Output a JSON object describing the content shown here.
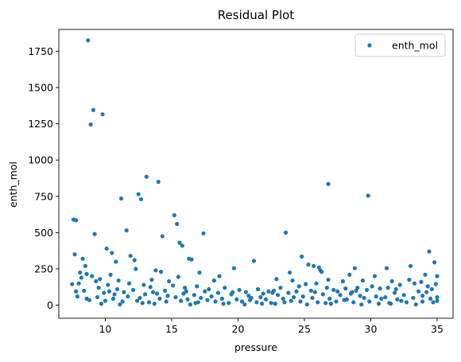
{
  "chart_data": {
    "type": "scatter",
    "title": "Residual Plot",
    "xlabel": "pressure",
    "ylabel": "enth_mol",
    "xlim": [
      6.5,
      36.2
    ],
    "ylim": [
      -90,
      1900
    ],
    "xticks": [
      10,
      15,
      20,
      25,
      30,
      35
    ],
    "yticks": [
      0,
      250,
      500,
      750,
      1000,
      1250,
      1500,
      1750
    ],
    "grid": false,
    "legend": {
      "position": "top-right",
      "entries": [
        "enth_mol"
      ]
    },
    "series": [
      {
        "name": "enth_mol",
        "color": "#1f77b4",
        "points": [
          [
            8.7,
            1825
          ],
          [
            9.1,
            1345
          ],
          [
            8.9,
            1245
          ],
          [
            9.8,
            1315
          ],
          [
            13.1,
            885
          ],
          [
            14.0,
            850
          ],
          [
            26.8,
            835
          ],
          [
            12.5,
            765
          ],
          [
            12.7,
            730
          ],
          [
            11.2,
            735
          ],
          [
            29.8,
            755
          ],
          [
            7.6,
            590
          ],
          [
            7.8,
            585
          ],
          [
            15.2,
            620
          ],
          [
            15.4,
            560
          ],
          [
            11.6,
            515
          ],
          [
            17.4,
            495
          ],
          [
            23.6,
            500
          ],
          [
            9.2,
            490
          ],
          [
            14.3,
            475
          ],
          [
            15.6,
            430
          ],
          [
            15.8,
            410
          ],
          [
            34.4,
            370
          ],
          [
            10.1,
            390
          ],
          [
            10.5,
            360
          ],
          [
            7.7,
            350
          ],
          [
            11.9,
            340
          ],
          [
            12.2,
            310
          ],
          [
            16.3,
            320
          ],
          [
            16.5,
            315
          ],
          [
            24.8,
            335
          ],
          [
            21.2,
            305
          ],
          [
            8.3,
            320
          ],
          [
            25.3,
            280
          ],
          [
            34.8,
            295
          ],
          [
            10.8,
            300
          ],
          [
            25.7,
            270
          ],
          [
            26.1,
            260
          ],
          [
            26.2,
            240
          ],
          [
            31.2,
            255
          ],
          [
            33.0,
            270
          ],
          [
            19.7,
            255
          ],
          [
            8.5,
            270
          ],
          [
            12.3,
            250
          ],
          [
            28.8,
            255
          ],
          [
            13.8,
            240
          ],
          [
            14.2,
            230
          ],
          [
            23.9,
            225
          ],
          [
            26.3,
            230
          ],
          [
            8.1,
            225
          ],
          [
            8.6,
            215
          ],
          [
            9.0,
            200
          ],
          [
            10.4,
            210
          ],
          [
            17.1,
            225
          ],
          [
            18.6,
            200
          ],
          [
            28.4,
            210
          ],
          [
            30.3,
            200
          ],
          [
            34.1,
            210
          ],
          [
            35.0,
            200
          ],
          [
            8.2,
            190
          ],
          [
            9.6,
            180
          ],
          [
            11.0,
            170
          ],
          [
            13.5,
            175
          ],
          [
            14.8,
            165
          ],
          [
            15.5,
            195
          ],
          [
            18.2,
            170
          ],
          [
            22.9,
            180
          ],
          [
            24.1,
            170
          ],
          [
            26.8,
            175
          ],
          [
            27.9,
            165
          ],
          [
            29.4,
            170
          ],
          [
            31.6,
            165
          ],
          [
            32.9,
            175
          ],
          [
            33.8,
            160
          ],
          [
            8.0,
            150
          ],
          [
            9.3,
            165
          ],
          [
            10.2,
            140
          ],
          [
            11.8,
            150
          ],
          [
            12.9,
            140
          ],
          [
            13.4,
            125
          ],
          [
            15.1,
            135
          ],
          [
            16.0,
            120
          ],
          [
            16.9,
            130
          ],
          [
            17.8,
            110
          ],
          [
            19.0,
            120
          ],
          [
            20.1,
            105
          ],
          [
            21.5,
            110
          ],
          [
            22.3,
            95
          ],
          [
            23.2,
            120
          ],
          [
            24.6,
            130
          ],
          [
            25.1,
            145
          ],
          [
            25.9,
            150
          ],
          [
            26.7,
            120
          ],
          [
            27.2,
            105
          ],
          [
            28.1,
            115
          ],
          [
            29.0,
            120
          ],
          [
            30.1,
            130
          ],
          [
            30.7,
            115
          ],
          [
            31.3,
            120
          ],
          [
            32.2,
            140
          ],
          [
            33.3,
            150
          ],
          [
            34.3,
            130
          ],
          [
            34.9,
            145
          ],
          [
            7.5,
            145
          ],
          [
            9.5,
            120
          ],
          [
            10.9,
            110
          ],
          [
            12.1,
            105
          ],
          [
            14.5,
            100
          ],
          [
            17.5,
            95
          ],
          [
            18.5,
            85
          ],
          [
            20.6,
            90
          ],
          [
            21.9,
            80
          ],
          [
            22.7,
            100
          ],
          [
            24.4,
            95
          ],
          [
            25.5,
            100
          ],
          [
            27.5,
            95
          ],
          [
            28.9,
            100
          ],
          [
            29.7,
            105
          ],
          [
            31.9,
            110
          ],
          [
            33.6,
            95
          ],
          [
            34.6,
            110
          ],
          [
            8.4,
            100
          ],
          [
            9.9,
            85
          ],
          [
            10.7,
            75
          ],
          [
            11.4,
            90
          ],
          [
            13.0,
            75
          ],
          [
            13.9,
            80
          ],
          [
            14.7,
            65
          ],
          [
            15.9,
            80
          ],
          [
            16.7,
            70
          ],
          [
            18.0,
            60
          ],
          [
            19.5,
            75
          ],
          [
            20.8,
            65
          ],
          [
            21.7,
            55
          ],
          [
            23.0,
            70
          ],
          [
            23.8,
            85
          ],
          [
            24.9,
            60
          ],
          [
            26.4,
            75
          ],
          [
            27.7,
            70
          ],
          [
            28.5,
            80
          ],
          [
            29.2,
            65
          ],
          [
            30.4,
            60
          ],
          [
            31.1,
            55
          ],
          [
            32.5,
            70
          ],
          [
            33.9,
            65
          ],
          [
            35.0,
            55
          ],
          [
            7.9,
            60
          ],
          [
            9.4,
            55
          ],
          [
            10.6,
            45
          ],
          [
            11.7,
            60
          ],
          [
            12.6,
            50
          ],
          [
            14.1,
            45
          ],
          [
            15.3,
            55
          ],
          [
            16.2,
            40
          ],
          [
            17.2,
            50
          ],
          [
            18.8,
            45
          ],
          [
            19.9,
            40
          ],
          [
            21.0,
            50
          ],
          [
            22.1,
            40
          ],
          [
            23.4,
            45
          ],
          [
            24.2,
            55
          ],
          [
            25.6,
            50
          ],
          [
            26.9,
            45
          ],
          [
            28.2,
            40
          ],
          [
            29.5,
            50
          ],
          [
            30.8,
            45
          ],
          [
            32.0,
            40
          ],
          [
            33.2,
            50
          ],
          [
            34.5,
            45
          ],
          [
            8.8,
            35
          ],
          [
            10.0,
            30
          ],
          [
            11.3,
            25
          ],
          [
            12.4,
            30
          ],
          [
            13.3,
            20
          ],
          [
            14.6,
            25
          ],
          [
            15.7,
            30
          ],
          [
            17.0,
            20
          ],
          [
            18.3,
            25
          ],
          [
            19.3,
            15
          ],
          [
            20.3,
            25
          ],
          [
            21.4,
            20
          ],
          [
            22.5,
            15
          ],
          [
            23.5,
            20
          ],
          [
            24.7,
            25
          ],
          [
            26.0,
            20
          ],
          [
            27.4,
            25
          ],
          [
            28.7,
            20
          ],
          [
            29.9,
            25
          ],
          [
            31.4,
            15
          ],
          [
            32.7,
            20
          ],
          [
            33.9,
            25
          ],
          [
            34.7,
            20
          ],
          [
            9.7,
            10
          ],
          [
            11.1,
            5
          ],
          [
            13.7,
            10
          ],
          [
            16.4,
            5
          ],
          [
            18.9,
            10
          ],
          [
            20.5,
            5
          ],
          [
            22.8,
            10
          ],
          [
            25.2,
            5
          ],
          [
            27.0,
            10
          ],
          [
            29.3,
            5
          ],
          [
            31.5,
            10
          ],
          [
            33.4,
            5
          ],
          [
            12.8,
            15
          ],
          [
            16.8,
            15
          ],
          [
            21.8,
            10
          ],
          [
            26.6,
            15
          ],
          [
            30.6,
            10
          ],
          [
            8.6,
            45
          ],
          [
            17.7,
            35
          ],
          [
            20.9,
            35
          ],
          [
            24.0,
            30
          ],
          [
            28.0,
            35
          ],
          [
            32.3,
            30
          ],
          [
            35.0,
            30
          ],
          [
            7.8,
            95
          ],
          [
            10.3,
            95
          ],
          [
            13.6,
            90
          ],
          [
            16.1,
            95
          ],
          [
            19.6,
            90
          ],
          [
            22.6,
            85
          ],
          [
            25.8,
            90
          ],
          [
            28.6,
            90
          ],
          [
            31.8,
            85
          ],
          [
            34.2,
            90
          ]
        ]
      }
    ]
  }
}
